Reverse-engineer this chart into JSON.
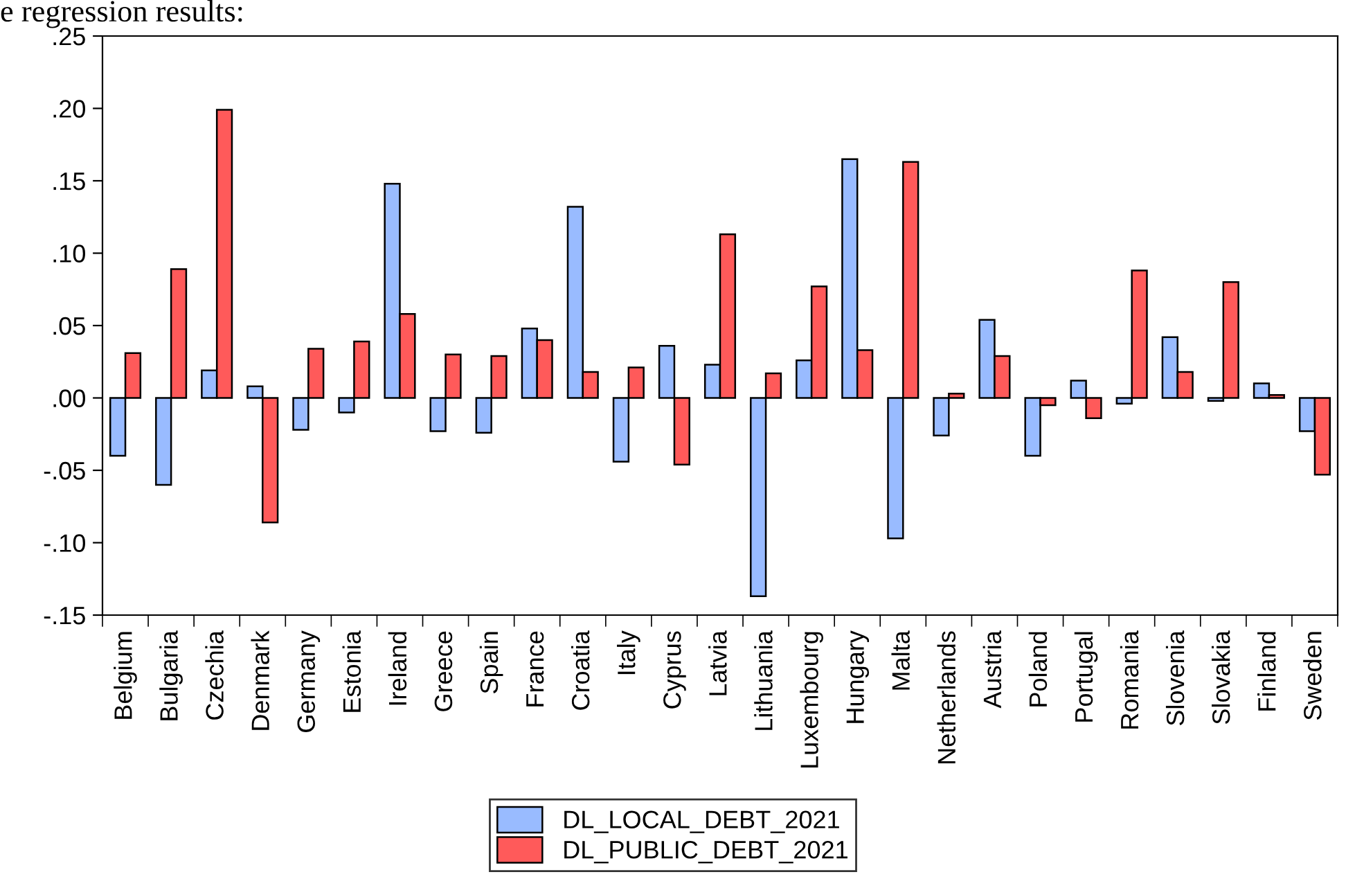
{
  "chart_data": {
    "type": "bar",
    "annotations": [
      "e regression results:"
    ],
    "categories": [
      "Belgium",
      "Bulgaria",
      "Czechia",
      "Denmark",
      "Germany",
      "Estonia",
      "Ireland",
      "Greece",
      "Spain",
      "France",
      "Croatia",
      "Italy",
      "Cyprus",
      "Latvia",
      "Lithuania",
      "Luxembourg",
      "Hungary",
      "Malta",
      "Netherlands",
      "Austria",
      "Poland",
      "Portugal",
      "Romania",
      "Slovenia",
      "Slovakia",
      "Finland",
      "Sweden"
    ],
    "series": [
      {
        "name": "DL_LOCAL_DEBT_2021",
        "color": "#99bbff",
        "values": [
          -0.04,
          -0.06,
          0.019,
          0.008,
          -0.022,
          -0.01,
          0.148,
          -0.023,
          -0.024,
          0.048,
          0.132,
          -0.044,
          0.036,
          0.023,
          -0.137,
          0.026,
          0.165,
          -0.097,
          -0.026,
          0.054,
          -0.04,
          0.012,
          -0.004,
          0.042,
          -0.002,
          0.01,
          -0.023
        ]
      },
      {
        "name": "DL_PUBLIC_DEBT_2021",
        "color": "#ff5a5a",
        "values": [
          0.031,
          0.089,
          0.199,
          -0.086,
          0.034,
          0.039,
          0.058,
          0.03,
          0.029,
          0.04,
          0.018,
          0.021,
          -0.046,
          0.113,
          0.017,
          0.077,
          0.033,
          0.163,
          0.003,
          0.029,
          -0.005,
          -0.014,
          0.088,
          0.018,
          0.08,
          0.002,
          -0.053
        ]
      }
    ],
    "ylim": [
      -0.15,
      0.25
    ],
    "yticks": [
      {
        "value": -0.15,
        "label": "-.15"
      },
      {
        "value": -0.1,
        "label": "-.10"
      },
      {
        "value": -0.05,
        "label": "-.05"
      },
      {
        "value": 0.0,
        "label": ".00"
      },
      {
        "value": 0.05,
        "label": ".05"
      },
      {
        "value": 0.1,
        "label": ".10"
      },
      {
        "value": 0.15,
        "label": ".15"
      },
      {
        "value": 0.2,
        "label": ".20"
      },
      {
        "value": 0.25,
        "label": ".25"
      }
    ],
    "grid": false,
    "legend": "bottom"
  }
}
